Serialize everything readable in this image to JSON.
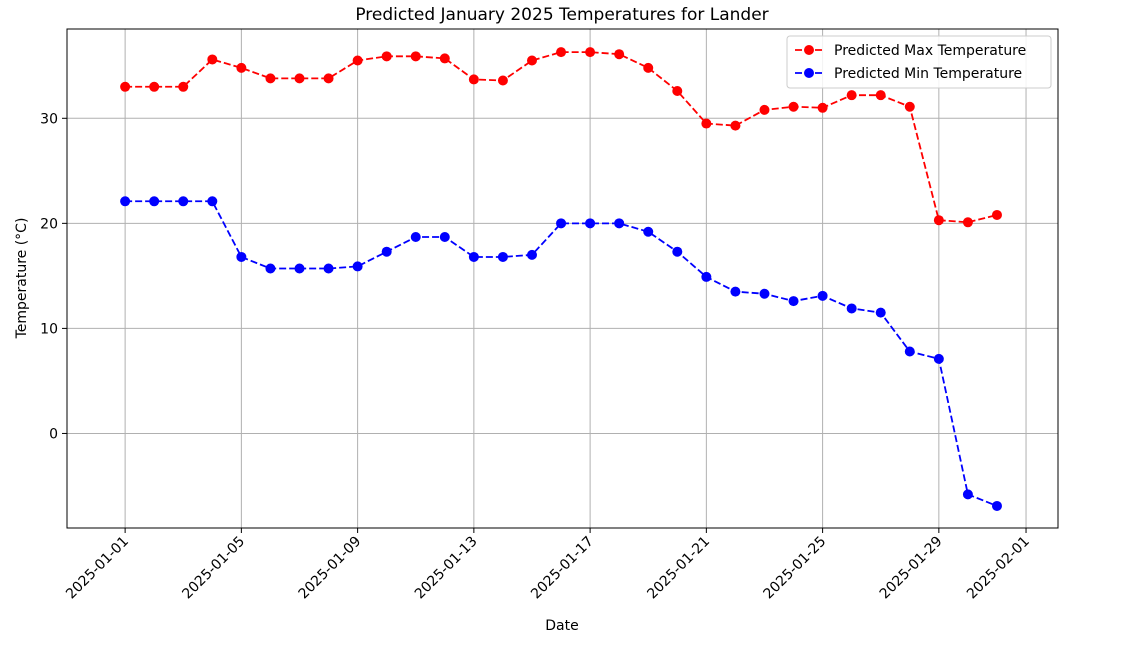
{
  "chart_data": {
    "type": "line",
    "title": "Predicted January 2025 Temperatures for Lander",
    "xlabel": "Date",
    "ylabel": "Temperature (°C)",
    "x": [
      "2025-01-01",
      "2025-01-02",
      "2025-01-03",
      "2025-01-04",
      "2025-01-05",
      "2025-01-06",
      "2025-01-07",
      "2025-01-08",
      "2025-01-09",
      "2025-01-10",
      "2025-01-11",
      "2025-01-12",
      "2025-01-13",
      "2025-01-14",
      "2025-01-15",
      "2025-01-16",
      "2025-01-17",
      "2025-01-18",
      "2025-01-19",
      "2025-01-20",
      "2025-01-21",
      "2025-01-22",
      "2025-01-23",
      "2025-01-24",
      "2025-01-25",
      "2025-01-26",
      "2025-01-27",
      "2025-01-28",
      "2025-01-29",
      "2025-01-30",
      "2025-01-31"
    ],
    "x_ticks": [
      "2025-01-01",
      "2025-01-05",
      "2025-01-09",
      "2025-01-13",
      "2025-01-17",
      "2025-01-21",
      "2025-01-25",
      "2025-01-29",
      "2025-02-01"
    ],
    "xlim": [
      "2024-12-30",
      "2025-02-01"
    ],
    "y_ticks": [
      0,
      10,
      20,
      30
    ],
    "ylim": [
      -9.0,
      38.5
    ],
    "grid": true,
    "legend_position": "top-right",
    "series": [
      {
        "name": "Predicted Max Temperature",
        "color": "#ff0000",
        "line_style": "dashed",
        "marker": "circle",
        "values": [
          33.0,
          33.0,
          33.0,
          35.6,
          34.8,
          33.8,
          33.8,
          33.8,
          35.5,
          35.9,
          35.9,
          35.7,
          33.7,
          33.6,
          35.5,
          36.3,
          36.3,
          36.1,
          34.8,
          32.6,
          29.5,
          29.3,
          30.8,
          31.1,
          31.0,
          32.2,
          32.2,
          31.1,
          20.3,
          20.1,
          20.8
        ]
      },
      {
        "name": "Predicted Min Temperature",
        "color": "#0000ff",
        "line_style": "dashed",
        "marker": "circle",
        "values": [
          22.1,
          22.1,
          22.1,
          22.1,
          16.8,
          15.7,
          15.7,
          15.7,
          15.9,
          17.3,
          18.7,
          18.7,
          16.8,
          16.8,
          17.0,
          20.0,
          20.0,
          20.0,
          19.2,
          17.3,
          14.9,
          13.5,
          13.3,
          12.6,
          13.1,
          11.9,
          11.5,
          7.8,
          7.1,
          -5.8,
          -6.9
        ]
      }
    ]
  }
}
